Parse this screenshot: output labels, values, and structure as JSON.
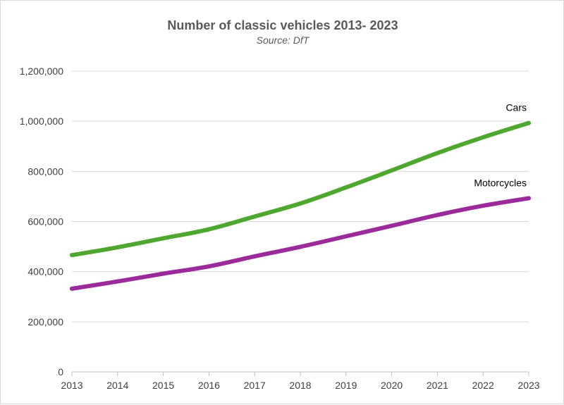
{
  "chart_data": {
    "type": "line",
    "title": "Number of classic vehicles 2013- 2023",
    "subtitle": "Source: DfT",
    "xlabel": "",
    "ylabel": "",
    "x": [
      "2013",
      "2014",
      "2015",
      "2016",
      "2017",
      "2018",
      "2019",
      "2020",
      "2021",
      "2022",
      "2023"
    ],
    "ylim": [
      0,
      1200000
    ],
    "yticks": [
      0,
      200000,
      400000,
      600000,
      800000,
      1000000,
      1200000
    ],
    "ytick_labels": [
      "0",
      "200,000",
      "400,000",
      "600,000",
      "800,000",
      "1,000,000",
      "1,200,000"
    ],
    "grid": true,
    "legend": "none",
    "series": [
      {
        "name": "Cars",
        "color": "#4ea72e",
        "values": [
          466000,
          497000,
          533000,
          569000,
          620000,
          672000,
          736000,
          804000,
          873000,
          936000,
          993000
        ]
      },
      {
        "name": "Motorcycles",
        "color": "#9b2a9b",
        "values": [
          332000,
          361000,
          392000,
          421000,
          461000,
          499000,
          541000,
          583000,
          626000,
          663000,
          693000
        ]
      }
    ]
  }
}
